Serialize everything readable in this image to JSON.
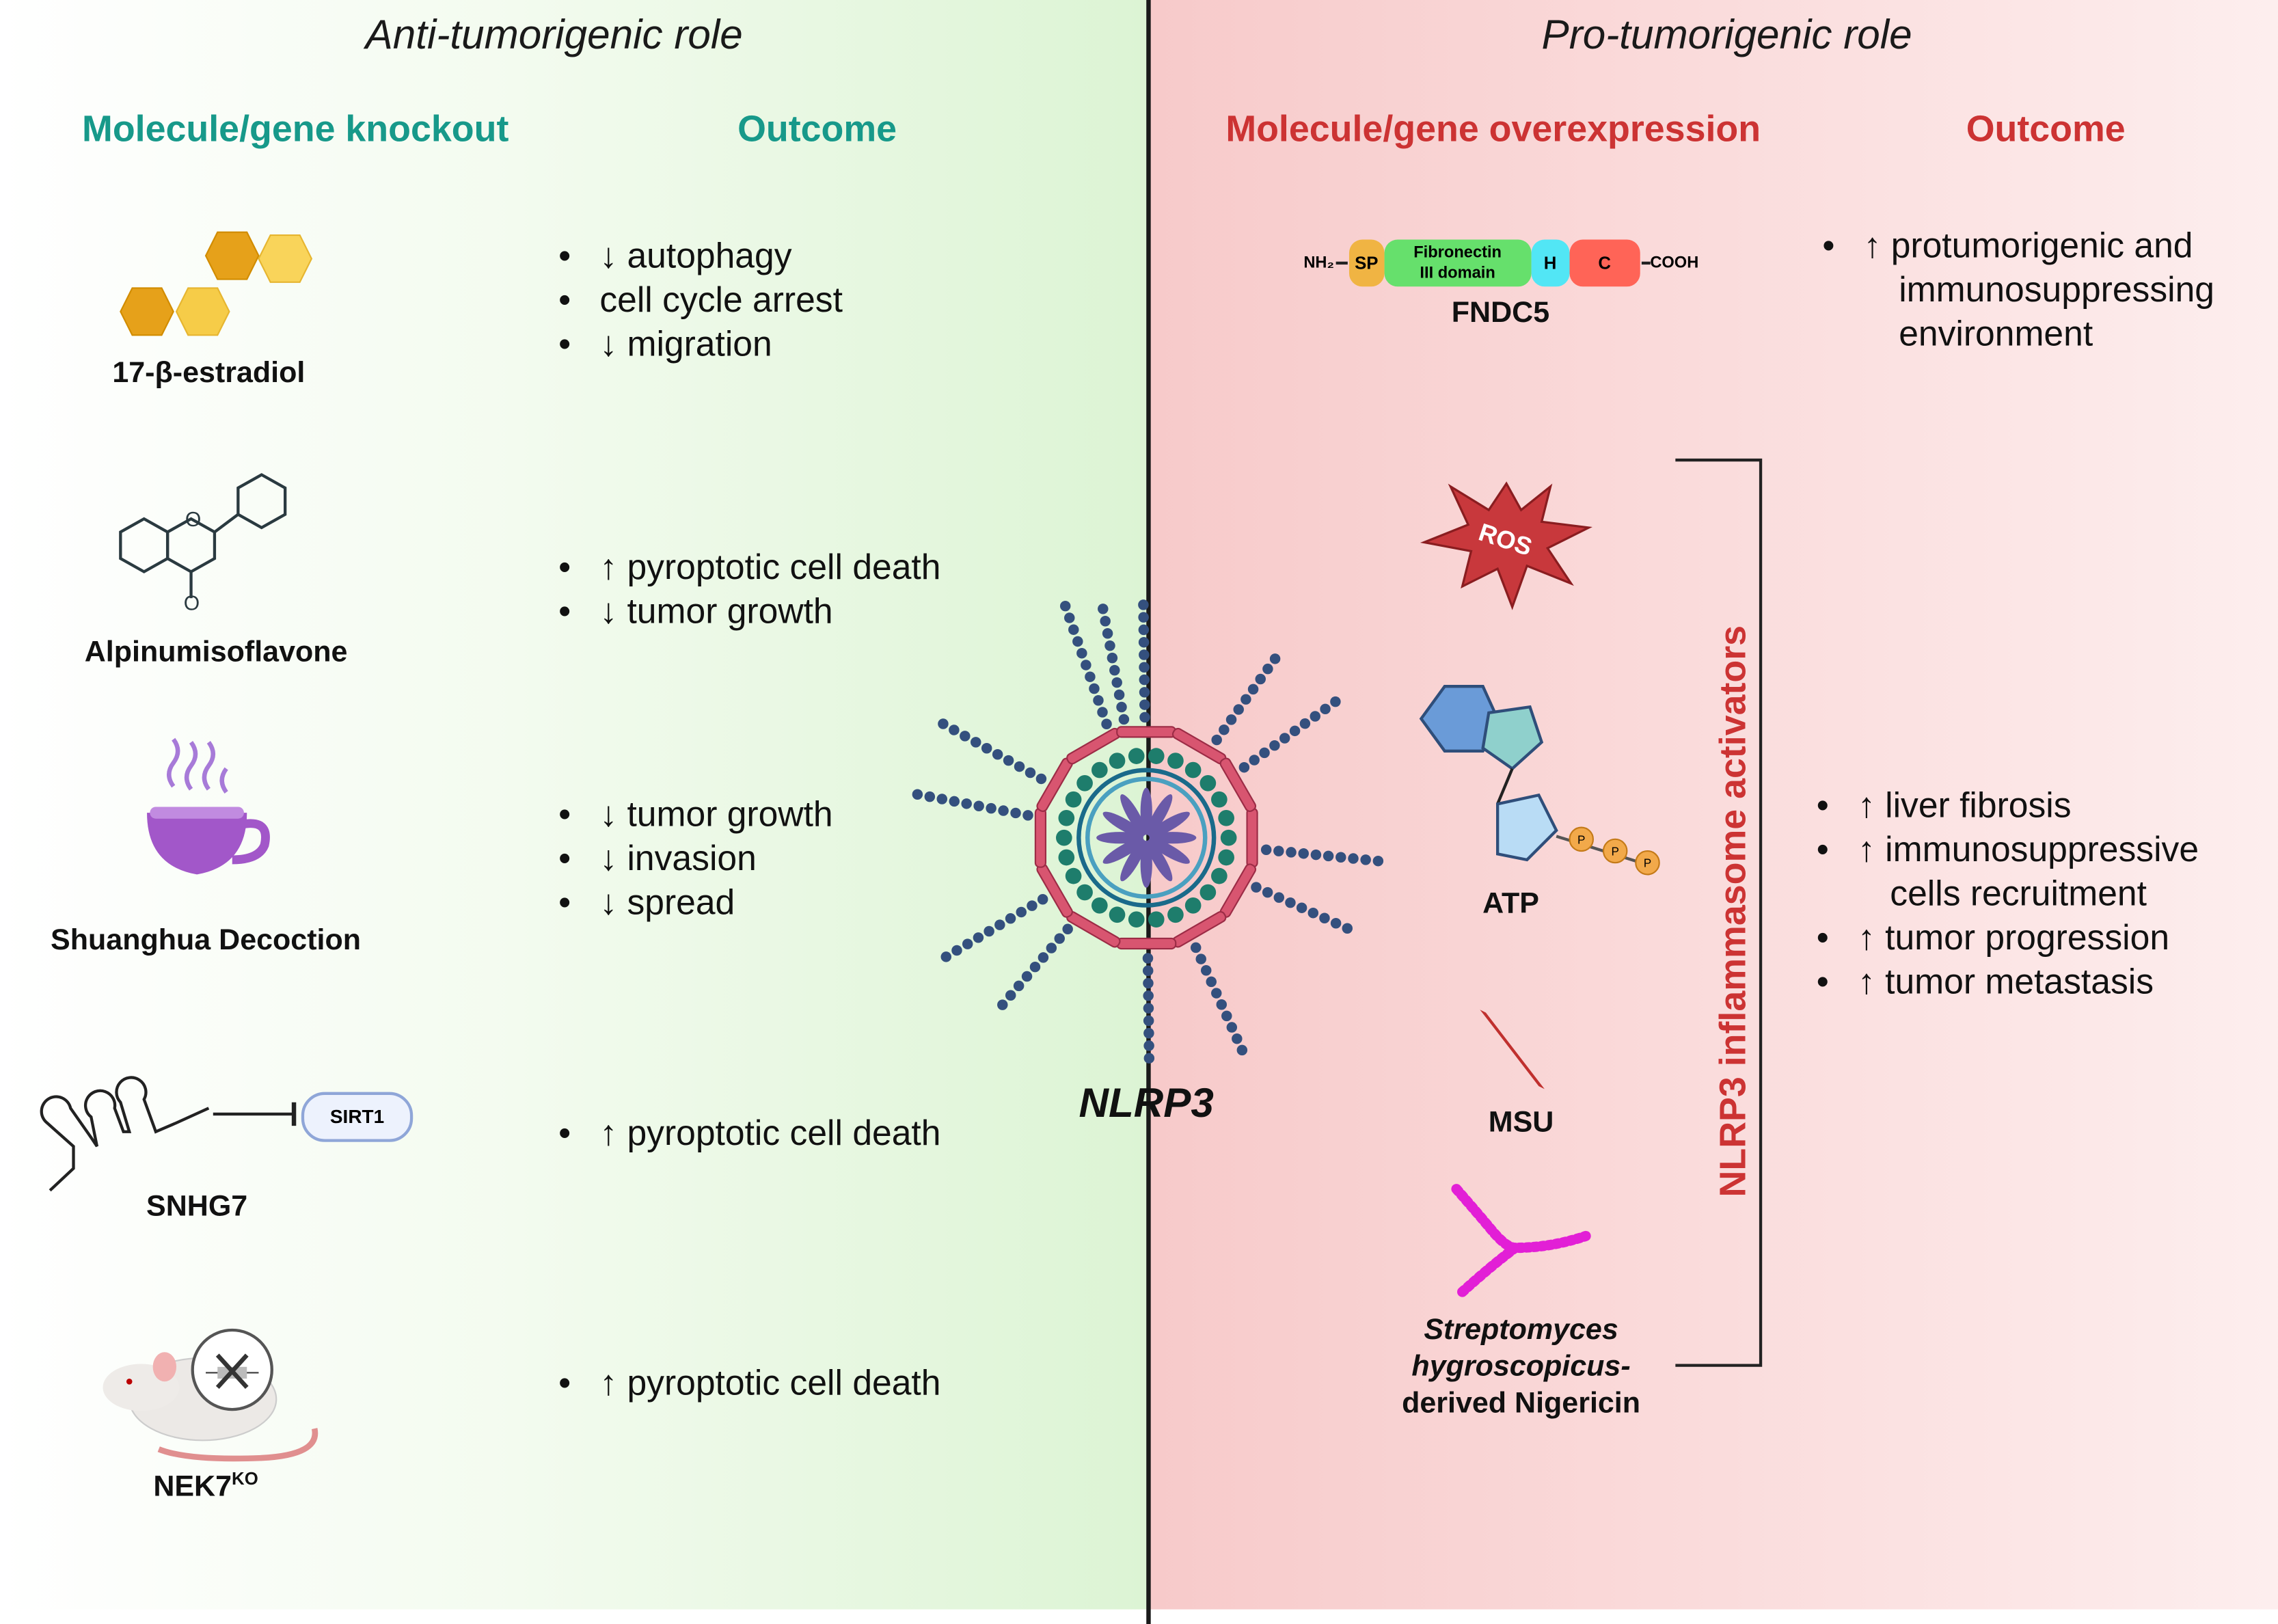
{
  "left": {
    "role_title": "Anti-tumorigenic role",
    "col1_header": "Molecule/gene knockout",
    "col2_header": "Outcome",
    "header_color": "#17998a",
    "items": [
      {
        "name": "17-β-estradiol",
        "icon": "hexagon-molecule-icon",
        "outcomes": [
          "↓ autophagy",
          "cell cycle arrest",
          "↓ migration"
        ]
      },
      {
        "name": "Alpinumisoflavone",
        "icon": "flavone-structure-icon",
        "outcomes": [
          "↑ pyroptotic cell death",
          "↓ tumor growth"
        ]
      },
      {
        "name": "Shuanghua Decoction",
        "icon": "tea-cup-icon",
        "outcomes": [
          "↓ tumor growth",
          "↓ invasion",
          "↓ spread"
        ]
      },
      {
        "name": "SNHG7",
        "icon": "rna-hairpin-icon",
        "target": "SIRT1",
        "outcomes": [
          "↑ pyroptotic cell death"
        ]
      },
      {
        "name": "NEK7",
        "superscript": "KO",
        "icon": "knockout-mouse-icon",
        "outcomes": [
          "↑ pyroptotic cell death"
        ]
      }
    ]
  },
  "center": {
    "label": "NLRP3"
  },
  "right": {
    "role_title": "Pro-tumorigenic role",
    "col1_header": "Molecule/gene overexpression",
    "col2_header": "Outcome",
    "header_color": "#cc3333",
    "fndc5": {
      "name": "FNDC5",
      "n_term": "NH₂",
      "c_term": "COOH",
      "domains": [
        {
          "label": "SP",
          "color": "#f0b443"
        },
        {
          "label": "Fibronectin",
          "label2": "III domain",
          "color": "#66e06c"
        },
        {
          "label": "H",
          "color": "#52e6f5"
        },
        {
          "label": "C",
          "color": "#ff6457"
        }
      ],
      "outcomes": [
        "↑ protumorigenic and",
        "immunosuppressing",
        "environment"
      ]
    },
    "activators_label": "NLRP3 inflammasome activators",
    "activators": [
      {
        "name": "ROS",
        "icon": "ros-burst-icon"
      },
      {
        "name": "ATP",
        "icon": "atp-molecule-icon",
        "phosphate": "P"
      },
      {
        "name": "MSU",
        "icon": "msu-crystal-icon"
      },
      {
        "name_lines": [
          "Streptomyces",
          "hygroscopicus-",
          "derived Nigericin"
        ],
        "icon": "nigericin-icon"
      }
    ],
    "activator_outcomes": [
      "↑ liver fibrosis",
      "↑ immunosuppressive",
      "cells recruitment",
      "↑ tumor progression",
      "↑ tumor metastasis"
    ]
  }
}
